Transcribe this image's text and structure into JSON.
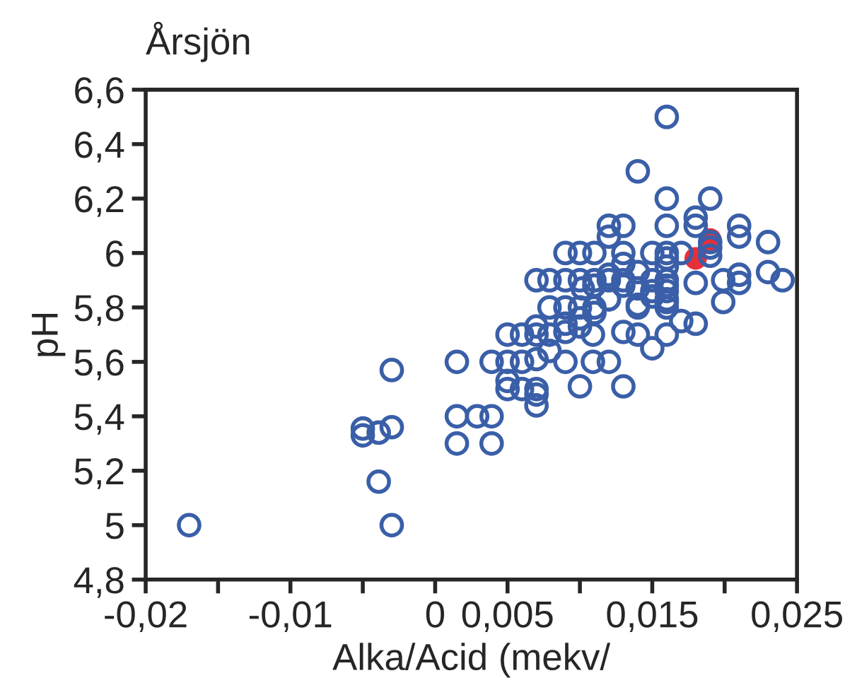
{
  "chart_data": {
    "type": "scatter",
    "title": "Årsjön",
    "xlabel": "Alka/Acid (mekv/",
    "ylabel": "pH",
    "xlim": [
      -0.02,
      0.025
    ],
    "ylim": [
      4.8,
      6.6
    ],
    "xticks": [
      {
        "value": -0.02,
        "label": "-0,02"
      },
      {
        "value": -0.015,
        "label": null
      },
      {
        "value": -0.01,
        "label": "-0,01"
      },
      {
        "value": -0.005,
        "label": null
      },
      {
        "value": 0,
        "label": "0"
      },
      {
        "value": 0.005,
        "label": "0,005"
      },
      {
        "value": 0.01,
        "label": null
      },
      {
        "value": 0.015,
        "label": "0,015"
      },
      {
        "value": 0.02,
        "label": null
      },
      {
        "value": 0.025,
        "label": "0,025"
      }
    ],
    "yticks": [
      {
        "value": 4.8,
        "label": "4,8"
      },
      {
        "value": 5,
        "label": "5"
      },
      {
        "value": 5.2,
        "label": "5,2"
      },
      {
        "value": 5.4,
        "label": "5,4"
      },
      {
        "value": 5.6,
        "label": "5,6"
      },
      {
        "value": 5.8,
        "label": "5,8"
      },
      {
        "value": 6,
        "label": "6"
      },
      {
        "value": 6.2,
        "label": "6,2"
      },
      {
        "value": 6.4,
        "label": "6,4"
      },
      {
        "value": 6.6,
        "label": "6,6"
      }
    ],
    "marker": "circle",
    "grid": false,
    "legend": false,
    "series": [
      {
        "color": "#3a5fa8",
        "x": [
          -0.017,
          -0.005,
          -0.005,
          -0.0039,
          -0.003,
          -0.003,
          -0.0039,
          -0.003,
          0.0015,
          0.0015,
          0.0029,
          0.0039,
          0.0015,
          0.0039,
          0.0039,
          0.0199,
          0.0079,
          0.009,
          0.01,
          0.011,
          0.011,
          0.012,
          0.014,
          0.015,
          0.016,
          0.016,
          0.017,
          0.018,
          0.007,
          0.007,
          0.006,
          0.005,
          0.0079,
          0.0079,
          0.009,
          0.009,
          0.01,
          0.0109,
          0.013,
          0.014,
          0.016,
          0.015,
          0.005,
          0.006,
          0.007,
          0.009,
          0.0109,
          0.012,
          0.005,
          0.005,
          0.006,
          0.007,
          0.007,
          0.007,
          0.01,
          0.013,
          0.016,
          0.014,
          0.016,
          0.019,
          0.012,
          0.013,
          0.012,
          0.016,
          0.018,
          0.018,
          0.021,
          0.021,
          0.023,
          0.019,
          0.019,
          0.019,
          0.009,
          0.01,
          0.011,
          0.013,
          0.015,
          0.016,
          0.017,
          0.013,
          0.016,
          0.016,
          0.007,
          0.0079,
          0.009,
          0.01,
          0.011,
          0.012,
          0.013,
          0.015,
          0.016,
          0.018,
          0.0199,
          0.021,
          0.021,
          0.023,
          0.024,
          0.011,
          0.0102,
          0.012,
          0.013,
          0.014,
          0.014,
          0.016,
          0.016,
          0.016,
          0.012,
          0.014,
          0.015,
          0.01
        ],
        "values": [
          5.0,
          5.355,
          5.33,
          5.34,
          5.36,
          5.57,
          5.16,
          5.0,
          5.6,
          5.4,
          5.4,
          5.4,
          5.3,
          5.3,
          5.6,
          5.82,
          5.8,
          5.8,
          5.8,
          5.8,
          5.78,
          5.83,
          5.8,
          5.84,
          5.82,
          5.8,
          5.75,
          5.74,
          5.73,
          5.7,
          5.7,
          5.7,
          5.7,
          5.64,
          5.74,
          5.71,
          5.73,
          5.7,
          5.71,
          5.7,
          5.7,
          5.65,
          5.6,
          5.6,
          5.61,
          5.6,
          5.6,
          5.6,
          5.53,
          5.5,
          5.5,
          5.5,
          5.48,
          5.44,
          5.51,
          5.51,
          6.5,
          6.3,
          6.2,
          6.2,
          6.1,
          6.1,
          6.06,
          6.1,
          6.13,
          6.1,
          6.1,
          6.06,
          6.04,
          6.04,
          6.02,
          5.99,
          6.0,
          6.0,
          6.0,
          6.0,
          6.0,
          6.0,
          6.0,
          5.96,
          5.98,
          5.95,
          5.9,
          5.9,
          5.9,
          5.9,
          5.9,
          5.9,
          5.9,
          5.9,
          5.9,
          5.89,
          5.9,
          5.92,
          5.89,
          5.93,
          5.9,
          5.88,
          5.87,
          5.92,
          5.88,
          5.93,
          5.87,
          5.88,
          5.86,
          5.83,
          5.83,
          5.81,
          5.86,
          5.76
        ]
      },
      {
        "color": "#e8303a",
        "x": [
          0.019,
          0.018
        ],
        "values": [
          6.05,
          5.98
        ]
      }
    ]
  }
}
